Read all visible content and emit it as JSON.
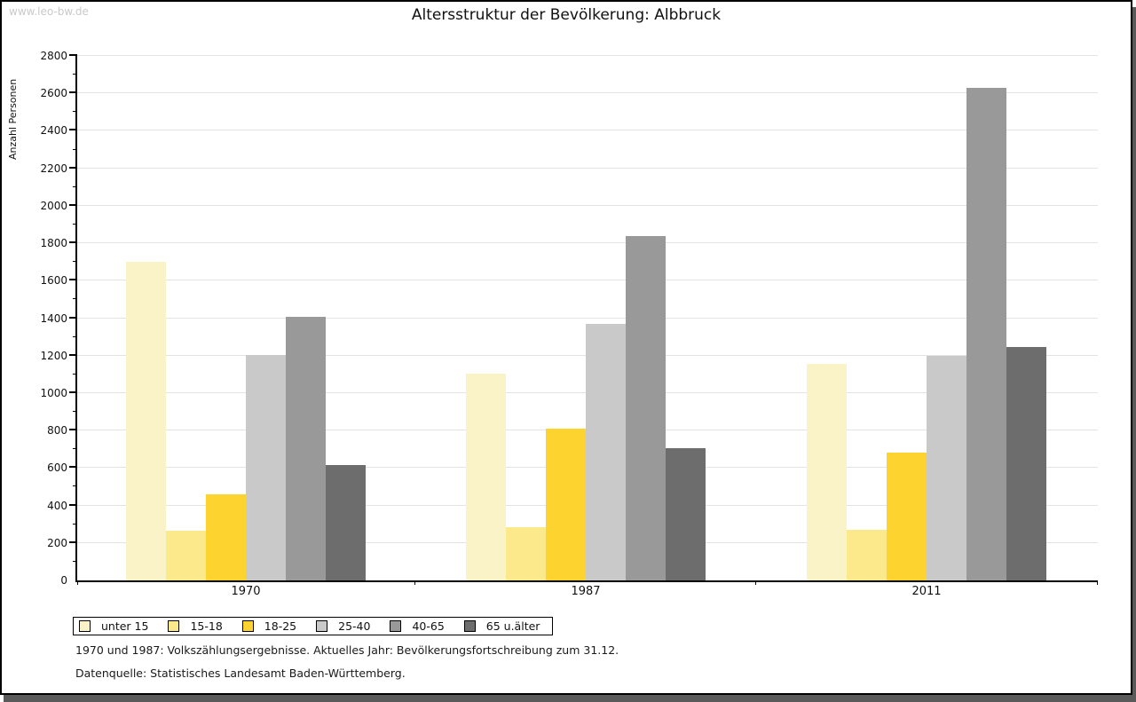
{
  "page": {
    "watermark": "www.leo-bw.de"
  },
  "chart_data": {
    "type": "bar",
    "title": "Altersstruktur der Bevölkerung: Albbruck",
    "ylabel": "Anzahl Personen",
    "xlabel": "",
    "categories": [
      "1970",
      "1987",
      "2011"
    ],
    "series": [
      {
        "name": "unter 15",
        "color": "#FAF3C8",
        "values": [
          1700,
          1105,
          1155
        ]
      },
      {
        "name": "15-18",
        "color": "#FCE98B",
        "values": [
          265,
          285,
          270
        ]
      },
      {
        "name": "18-25",
        "color": "#FCD32F",
        "values": [
          460,
          810,
          680
        ]
      },
      {
        "name": "25-40",
        "color": "#C9C9C9",
        "values": [
          1205,
          1370,
          1200
        ]
      },
      {
        "name": "40-65",
        "color": "#999999",
        "values": [
          1405,
          1840,
          2630
        ]
      },
      {
        "name": "65 u.älter",
        "color": "#6D6D6D",
        "values": [
          615,
          705,
          1245
        ]
      }
    ],
    "ylim": [
      0,
      2800
    ],
    "ytick_step": 200,
    "ytick_minor_step": 100,
    "grid": true,
    "legend_position": "bottom",
    "footnotes": [
      "1970 und 1987: Volkszählungsergebnisse. Aktuelles Jahr: Bevölkerungsfortschreibung zum 31.12.",
      "Datenquelle: Statistisches Landesamt Baden-Württemberg."
    ]
  }
}
